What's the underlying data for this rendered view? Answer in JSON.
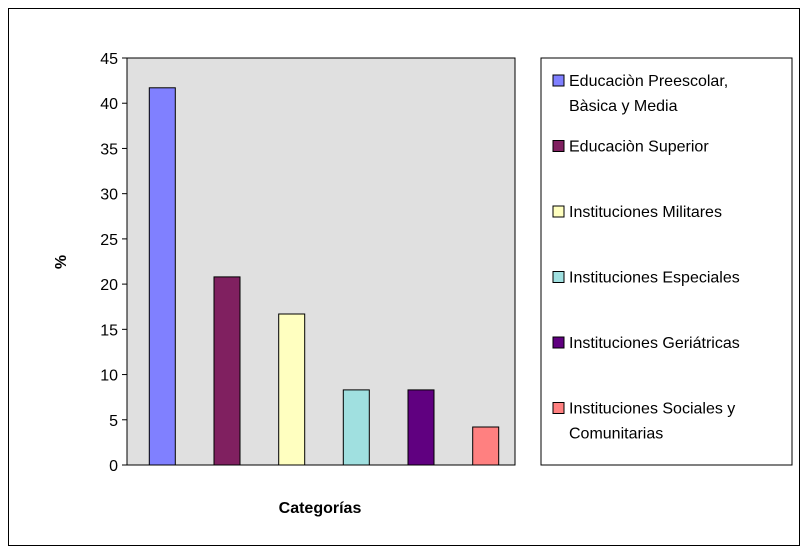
{
  "chart_data": {
    "type": "bar",
    "xlabel": "Categorías",
    "ylabel": "%",
    "ylim": [
      0,
      45
    ],
    "yticks": [
      0,
      5,
      10,
      15,
      20,
      25,
      30,
      35,
      40,
      45
    ],
    "grid": false,
    "legend_position": "right",
    "plot_background": "#e0e0e0",
    "series": [
      {
        "legend": [
          "Educaciòn Preescolar,",
          "Bàsica y Media"
        ],
        "value": 41.7,
        "color": "#8080ff"
      },
      {
        "legend": [
          "Educaciòn Superior"
        ],
        "value": 20.8,
        "color": "#802060"
      },
      {
        "legend": [
          "Instituciones Militares"
        ],
        "value": 16.7,
        "color": "#ffffc0"
      },
      {
        "legend": [
          "Instituciones Especiales"
        ],
        "value": 8.3,
        "color": "#a0e0e0"
      },
      {
        "legend": [
          "Instituciones Geriátricas"
        ],
        "value": 8.3,
        "color": "#600080"
      },
      {
        "legend": [
          "Instituciones Sociales y",
          "Comunitarias"
        ],
        "value": 4.2,
        "color": "#ff8080"
      }
    ]
  }
}
